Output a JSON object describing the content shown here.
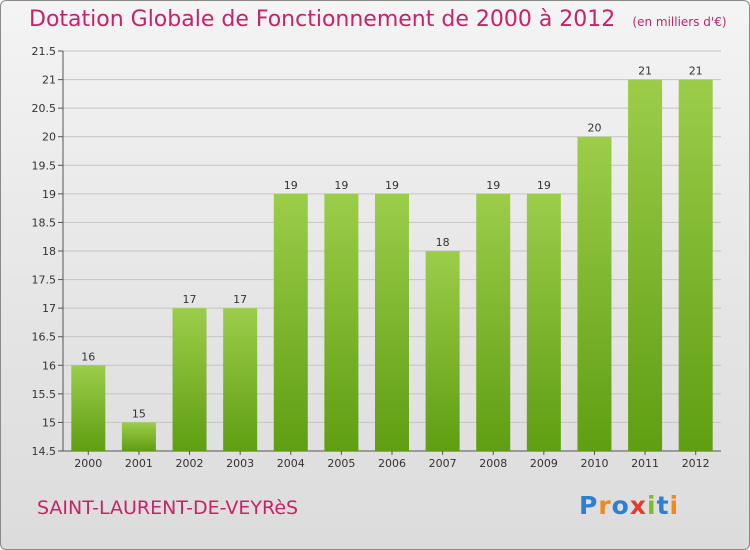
{
  "header": {
    "title": "Dotation Globale de Fonctionnement de 2000 à 2012",
    "unit": "(en milliers d'€)"
  },
  "footer": {
    "commune": "SAINT-LAURENT-DE-VEYRèS",
    "logo": "Proxiti"
  },
  "colors": {
    "accent": "#c8226a",
    "bar_top": "#9ccd4a",
    "bar_bottom": "#5f9e12",
    "logo_letters": [
      "#2e7fd1",
      "#f08a1c",
      "#2e7fd1",
      "#e23c2e",
      "#7dbb2e",
      "#2e7fd1",
      "#f08a1c"
    ]
  },
  "chart_data": {
    "type": "bar",
    "title": "Dotation Globale de Fonctionnement de 2000 à 2012",
    "subtitle": "(en milliers d'€)",
    "categories": [
      "2000",
      "2001",
      "2002",
      "2003",
      "2004",
      "2005",
      "2006",
      "2007",
      "2008",
      "2009",
      "2010",
      "2011",
      "2012"
    ],
    "values": [
      16,
      15,
      17,
      17,
      19,
      19,
      19,
      18,
      19,
      19,
      20,
      21,
      21
    ],
    "value_labels": [
      "16",
      "15",
      "17",
      "17",
      "19",
      "19",
      "19",
      "18",
      "19",
      "19",
      "20",
      "21",
      "21"
    ],
    "ylim": [
      14.5,
      21.5
    ],
    "yticks": [
      14.5,
      15,
      15.5,
      16,
      16.5,
      17,
      17.5,
      18,
      18.5,
      19,
      19.5,
      20,
      20.5,
      21,
      21.5
    ],
    "ytick_labels": [
      "14.5",
      "15",
      "15.5",
      "16",
      "16.5",
      "17",
      "17.5",
      "18",
      "18.5",
      "19",
      "19.5",
      "20",
      "20.5",
      "21",
      "21.5"
    ],
    "grid": true,
    "legend": "none"
  }
}
